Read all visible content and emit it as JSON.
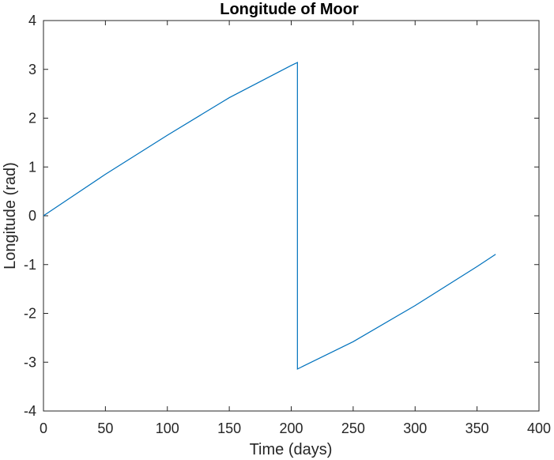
{
  "chart_data": {
    "type": "line",
    "title": "Longitude of Moor",
    "xlabel": "Time (days)",
    "ylabel": "Longitude (rad)",
    "xlim": [
      0,
      400
    ],
    "ylim": [
      -4,
      4
    ],
    "xticks": [
      0,
      50,
      100,
      150,
      200,
      250,
      300,
      350,
      400
    ],
    "yticks": [
      -4,
      -3,
      -2,
      -1,
      0,
      1,
      2,
      3,
      4
    ],
    "xtick_labels": [
      "0",
      "50",
      "100",
      "150",
      "200",
      "250",
      "300",
      "350",
      "400"
    ],
    "ytick_labels": [
      "-4",
      "-3",
      "-2",
      "-1",
      "0",
      "1",
      "2",
      "3",
      "4"
    ],
    "grid": false,
    "series": [
      {
        "color": "#0072bd",
        "x": [
          0,
          50,
          100,
          150,
          200,
          205,
          205,
          250,
          300,
          350,
          365
        ],
        "y": [
          0,
          0.85,
          1.65,
          2.42,
          3.08,
          3.14,
          -3.14,
          -2.58,
          -1.84,
          -1.04,
          -0.79
        ]
      }
    ]
  }
}
